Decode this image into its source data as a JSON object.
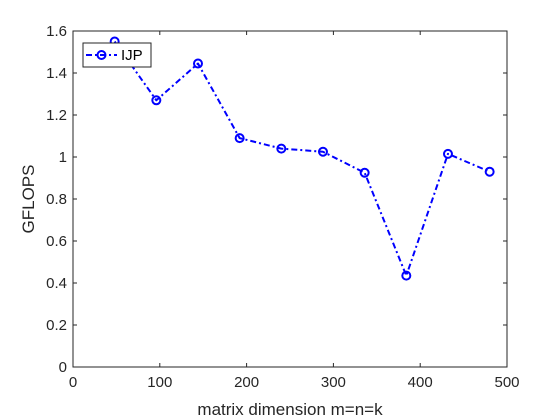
{
  "chart_data": {
    "type": "line",
    "xlabel": "matrix dimension m=n=k",
    "ylabel": "GFLOPS",
    "xlim": [
      0,
      500
    ],
    "ylim": [
      0,
      1.6
    ],
    "xticks": [
      "0",
      "100",
      "200",
      "300",
      "400",
      "500"
    ],
    "yticks": [
      "0",
      "0.2",
      "0.4",
      "0.6",
      "0.8",
      "1",
      "1.2",
      "1.4",
      "1.6"
    ],
    "grid": false,
    "legend_position": "top-left",
    "series": [
      {
        "name": "IJP",
        "color": "#0000ff",
        "line_style": "dash-dot",
        "marker": "circle",
        "x": [
          48,
          96,
          144,
          192,
          240,
          288,
          336,
          384,
          432,
          480
        ],
        "y": [
          1.55,
          1.27,
          1.445,
          1.09,
          1.04,
          1.025,
          0.925,
          0.435,
          1.015,
          0.93
        ]
      }
    ]
  }
}
